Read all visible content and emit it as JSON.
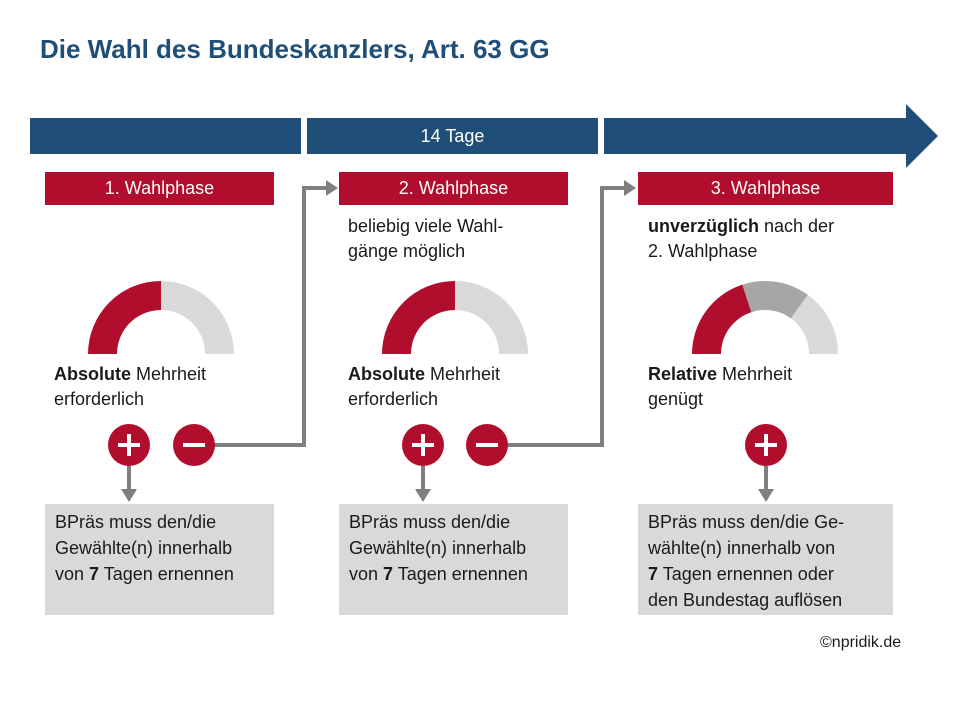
{
  "title": "Die Wahl des Bundeskanzlers, Art. 63 GG",
  "timeline": {
    "label": "14 Tage"
  },
  "phases": [
    {
      "header": "1. Wahlphase",
      "note": [
        "",
        ""
      ],
      "majority_bold": "Absolute",
      "majority_rest": " Mehrheit",
      "majority_line2": "erforderlich",
      "gauge": {
        "red_fraction": 0.5,
        "segments": [
          "red",
          "light-gray"
        ]
      },
      "result_lines": [
        [
          "",
          "BPräs muss den/die",
          ""
        ],
        [
          "",
          "Gewählte(n) innerhalb",
          ""
        ],
        [
          "von ",
          "7",
          " Tagen ernennen"
        ]
      ]
    },
    {
      "header": "2. Wahlphase",
      "note": [
        "beliebig viele Wahl-",
        "gänge möglich"
      ],
      "majority_bold": "Absolute",
      "majority_rest": " Mehrheit",
      "majority_line2": "erforderlich",
      "gauge": {
        "red_fraction": 0.5,
        "segments": [
          "red",
          "light-gray"
        ]
      },
      "result_lines": [
        [
          "",
          "BPräs muss den/die",
          ""
        ],
        [
          "",
          "Gewählte(n) innerhalb",
          ""
        ],
        [
          "von ",
          "7",
          " Tagen ernennen"
        ]
      ]
    },
    {
      "header": "3. Wahlphase",
      "note_bold": "unverzüglich",
      "note_rest": " nach der",
      "note_line2": "2. Wahlphase",
      "majority_bold": "Relative",
      "majority_rest": " Mehrheit",
      "majority_line2": "genügt",
      "gauge": {
        "segments": [
          "red",
          "mid-gray",
          "light-gray"
        ]
      },
      "result_lines": [
        [
          "",
          "BPräs muss den/die Ge-",
          ""
        ],
        [
          "",
          "wählte(n) innerhalb von",
          ""
        ],
        [
          "",
          "7",
          " Tagen ernennen oder"
        ],
        [
          "",
          "den Bundestag auflösen",
          ""
        ]
      ]
    }
  ],
  "symbols": {
    "success": "plus-icon",
    "failure": "minus-icon"
  },
  "colors": {
    "navy": "#1f4e79",
    "red": "#b10d2c",
    "gray_box": "#d9d9d9",
    "gauge_gray": "#d9d9d9",
    "gauge_mid": "#a6a6a6",
    "arrow_gray": "#7f7f7f"
  },
  "credit": "©npridik.de"
}
